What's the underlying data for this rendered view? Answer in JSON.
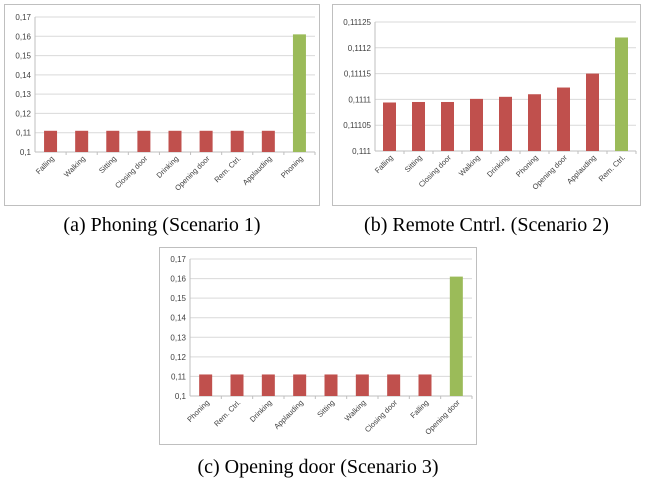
{
  "colors": {
    "bar_default": "#c0504d",
    "bar_highlight": "#9bbb59",
    "grid": "#d9d9d9",
    "axis": "#bfbfbf",
    "panel_border": "#bfbfbf"
  },
  "chart_data": [
    {
      "type": "bar",
      "caption": "(a) Phoning (Scenario 1)",
      "categories": [
        "Falling",
        "Walking",
        "Sitting",
        "Closing door",
        "Drinking",
        "Opening door",
        "Rem. Ctrl.",
        "Applauding",
        "Phoning"
      ],
      "values": [
        0.111,
        0.111,
        0.111,
        0.111,
        0.111,
        0.111,
        0.111,
        0.111,
        0.161
      ],
      "highlight_index": 8,
      "yticks": [
        "0,1",
        "0,11",
        "0,12",
        "0,13",
        "0,14",
        "0,15",
        "0,16",
        "0,17"
      ],
      "ylim": [
        0.1,
        0.17
      ],
      "grid": true,
      "title": "",
      "xlabel": "",
      "ylabel": ""
    },
    {
      "type": "bar",
      "caption": "(b) Remote Cntrl. (Scenario 2)",
      "categories": [
        "Falling",
        "Sitting",
        "Closing door",
        "Walking",
        "Drinking",
        "Phoning",
        "Opening door",
        "Applauding",
        "Rem. Ctrl."
      ],
      "values": [
        0.111094,
        0.111095,
        0.111095,
        0.111101,
        0.111105,
        0.11111,
        0.111123,
        0.11115,
        0.11122
      ],
      "highlight_index": 8,
      "yticks": [
        "0,111",
        "0,11105",
        "0,1111",
        "0,11115",
        "0,1112",
        "0,11125"
      ],
      "ylim": [
        0.111,
        0.11125
      ],
      "grid": true,
      "title": "",
      "xlabel": "",
      "ylabel": ""
    },
    {
      "type": "bar",
      "caption": "(c) Opening door (Scenario 3)",
      "categories": [
        "Phoning",
        "Rem. Ctrl.",
        "Drinking",
        "Applauding",
        "Sitting",
        "Walking",
        "Closing door",
        "Falling",
        "Opening door"
      ],
      "values": [
        0.111,
        0.111,
        0.111,
        0.111,
        0.111,
        0.111,
        0.111,
        0.111,
        0.161
      ],
      "highlight_index": 8,
      "yticks": [
        "0,1",
        "0,11",
        "0,12",
        "0,13",
        "0,14",
        "0,15",
        "0,16",
        "0,17"
      ],
      "ylim": [
        0.1,
        0.17
      ],
      "grid": true,
      "title": "",
      "xlabel": "",
      "ylabel": ""
    }
  ]
}
